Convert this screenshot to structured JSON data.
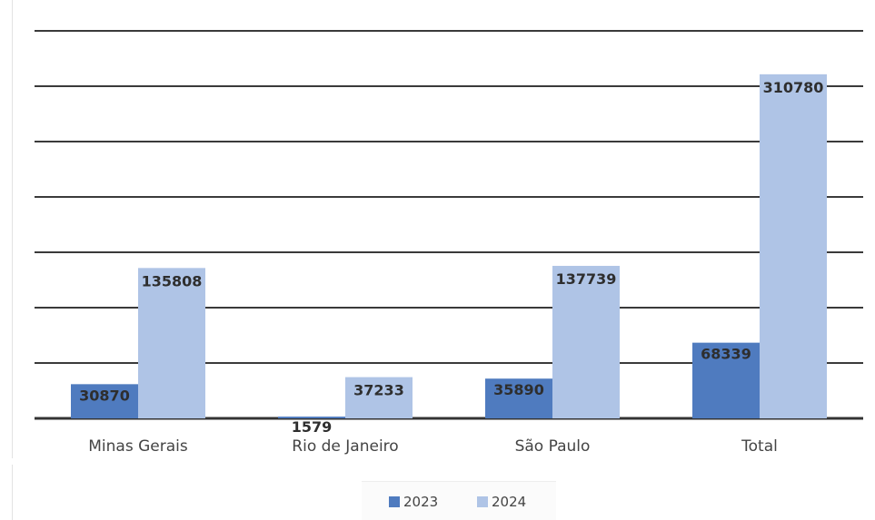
{
  "chart_data": {
    "type": "bar",
    "categories": [
      "Minas Gerais",
      "Rio de Janeiro",
      "São Paulo",
      "Total"
    ],
    "series": [
      {
        "name": "2023",
        "values": [
          30870,
          1579,
          35890,
          68339
        ],
        "color": "#4f7bbf"
      },
      {
        "name": "2024",
        "values": [
          135808,
          37233,
          137739,
          310780
        ],
        "color": "#afc4e6"
      }
    ],
    "data_labels": [
      [
        "30870",
        "1579",
        "35890",
        "68339"
      ],
      [
        "135808",
        "37233",
        "137739",
        "310780"
      ]
    ],
    "ylim": [
      0,
      350000
    ],
    "ytick_step": 50000,
    "grid": true,
    "legend": "bottom",
    "title": "",
    "xlabel": "",
    "ylabel": ""
  }
}
